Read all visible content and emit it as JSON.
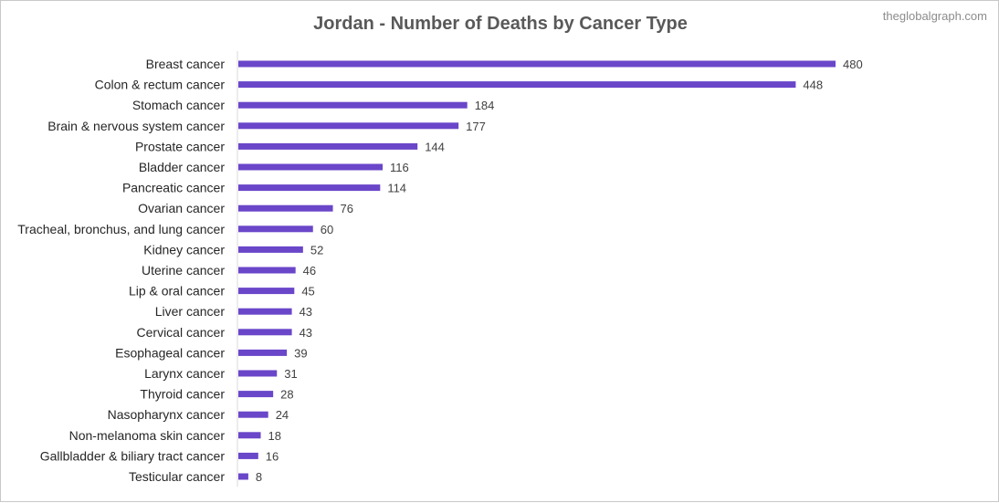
{
  "title": "Jordan - Number of Deaths by Cancer Type",
  "watermark": "theglobalgraph.com",
  "colors": {
    "bar": "#6a46c9",
    "axis": "#d9d9d9"
  },
  "chart_data": {
    "type": "bar",
    "orientation": "horizontal",
    "title": "Jordan - Number of Deaths by Cancer Type",
    "xlabel": "",
    "ylabel": "",
    "grid": false,
    "legend": "none",
    "xlim": [
      0,
      480
    ],
    "categories": [
      "Breast cancer",
      "Colon & rectum cancer",
      "Stomach cancer",
      "Brain & nervous system cancer",
      "Prostate cancer",
      "Bladder cancer",
      "Pancreatic cancer",
      "Ovarian cancer",
      "Tracheal, bronchus, and lung cancer",
      "Kidney cancer",
      "Uterine cancer",
      "Lip & oral cancer",
      "Liver cancer",
      "Cervical cancer",
      "Esophageal cancer",
      "Larynx cancer",
      "Thyroid cancer",
      "Nasopharynx cancer",
      "Non-melanoma skin cancer",
      "Gallbladder & biliary tract cancer",
      "Testicular cancer"
    ],
    "values": [
      480,
      448,
      184,
      177,
      144,
      116,
      114,
      76,
      60,
      52,
      46,
      45,
      43,
      43,
      39,
      31,
      28,
      24,
      18,
      16,
      8
    ]
  }
}
